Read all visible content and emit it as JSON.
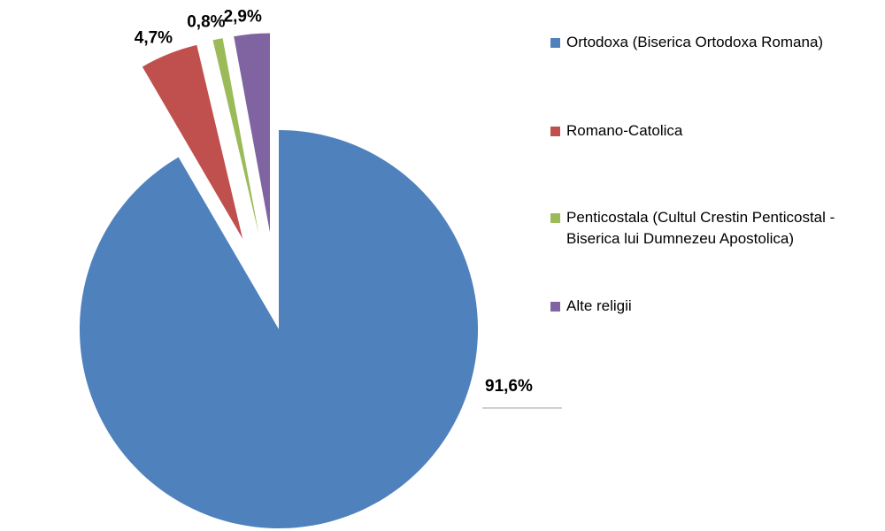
{
  "chart_data": {
    "type": "pie",
    "categories": [
      "Ortodoxa (Biserica Ortodoxa Romana)",
      "Romano-Catolica",
      "Penticostala (Cultul Crestin Penticostal - Biserica lui Dumnezeu Apostolica)",
      "Alte religii"
    ],
    "values": [
      91.6,
      4.7,
      0.8,
      2.9
    ],
    "value_labels": [
      "91,6%",
      "4,7%",
      "0,8%",
      "2,9%"
    ],
    "colors": [
      "#4f81bd",
      "#c0504d",
      "#9bbb59",
      "#8064a2"
    ],
    "legend": "right"
  }
}
